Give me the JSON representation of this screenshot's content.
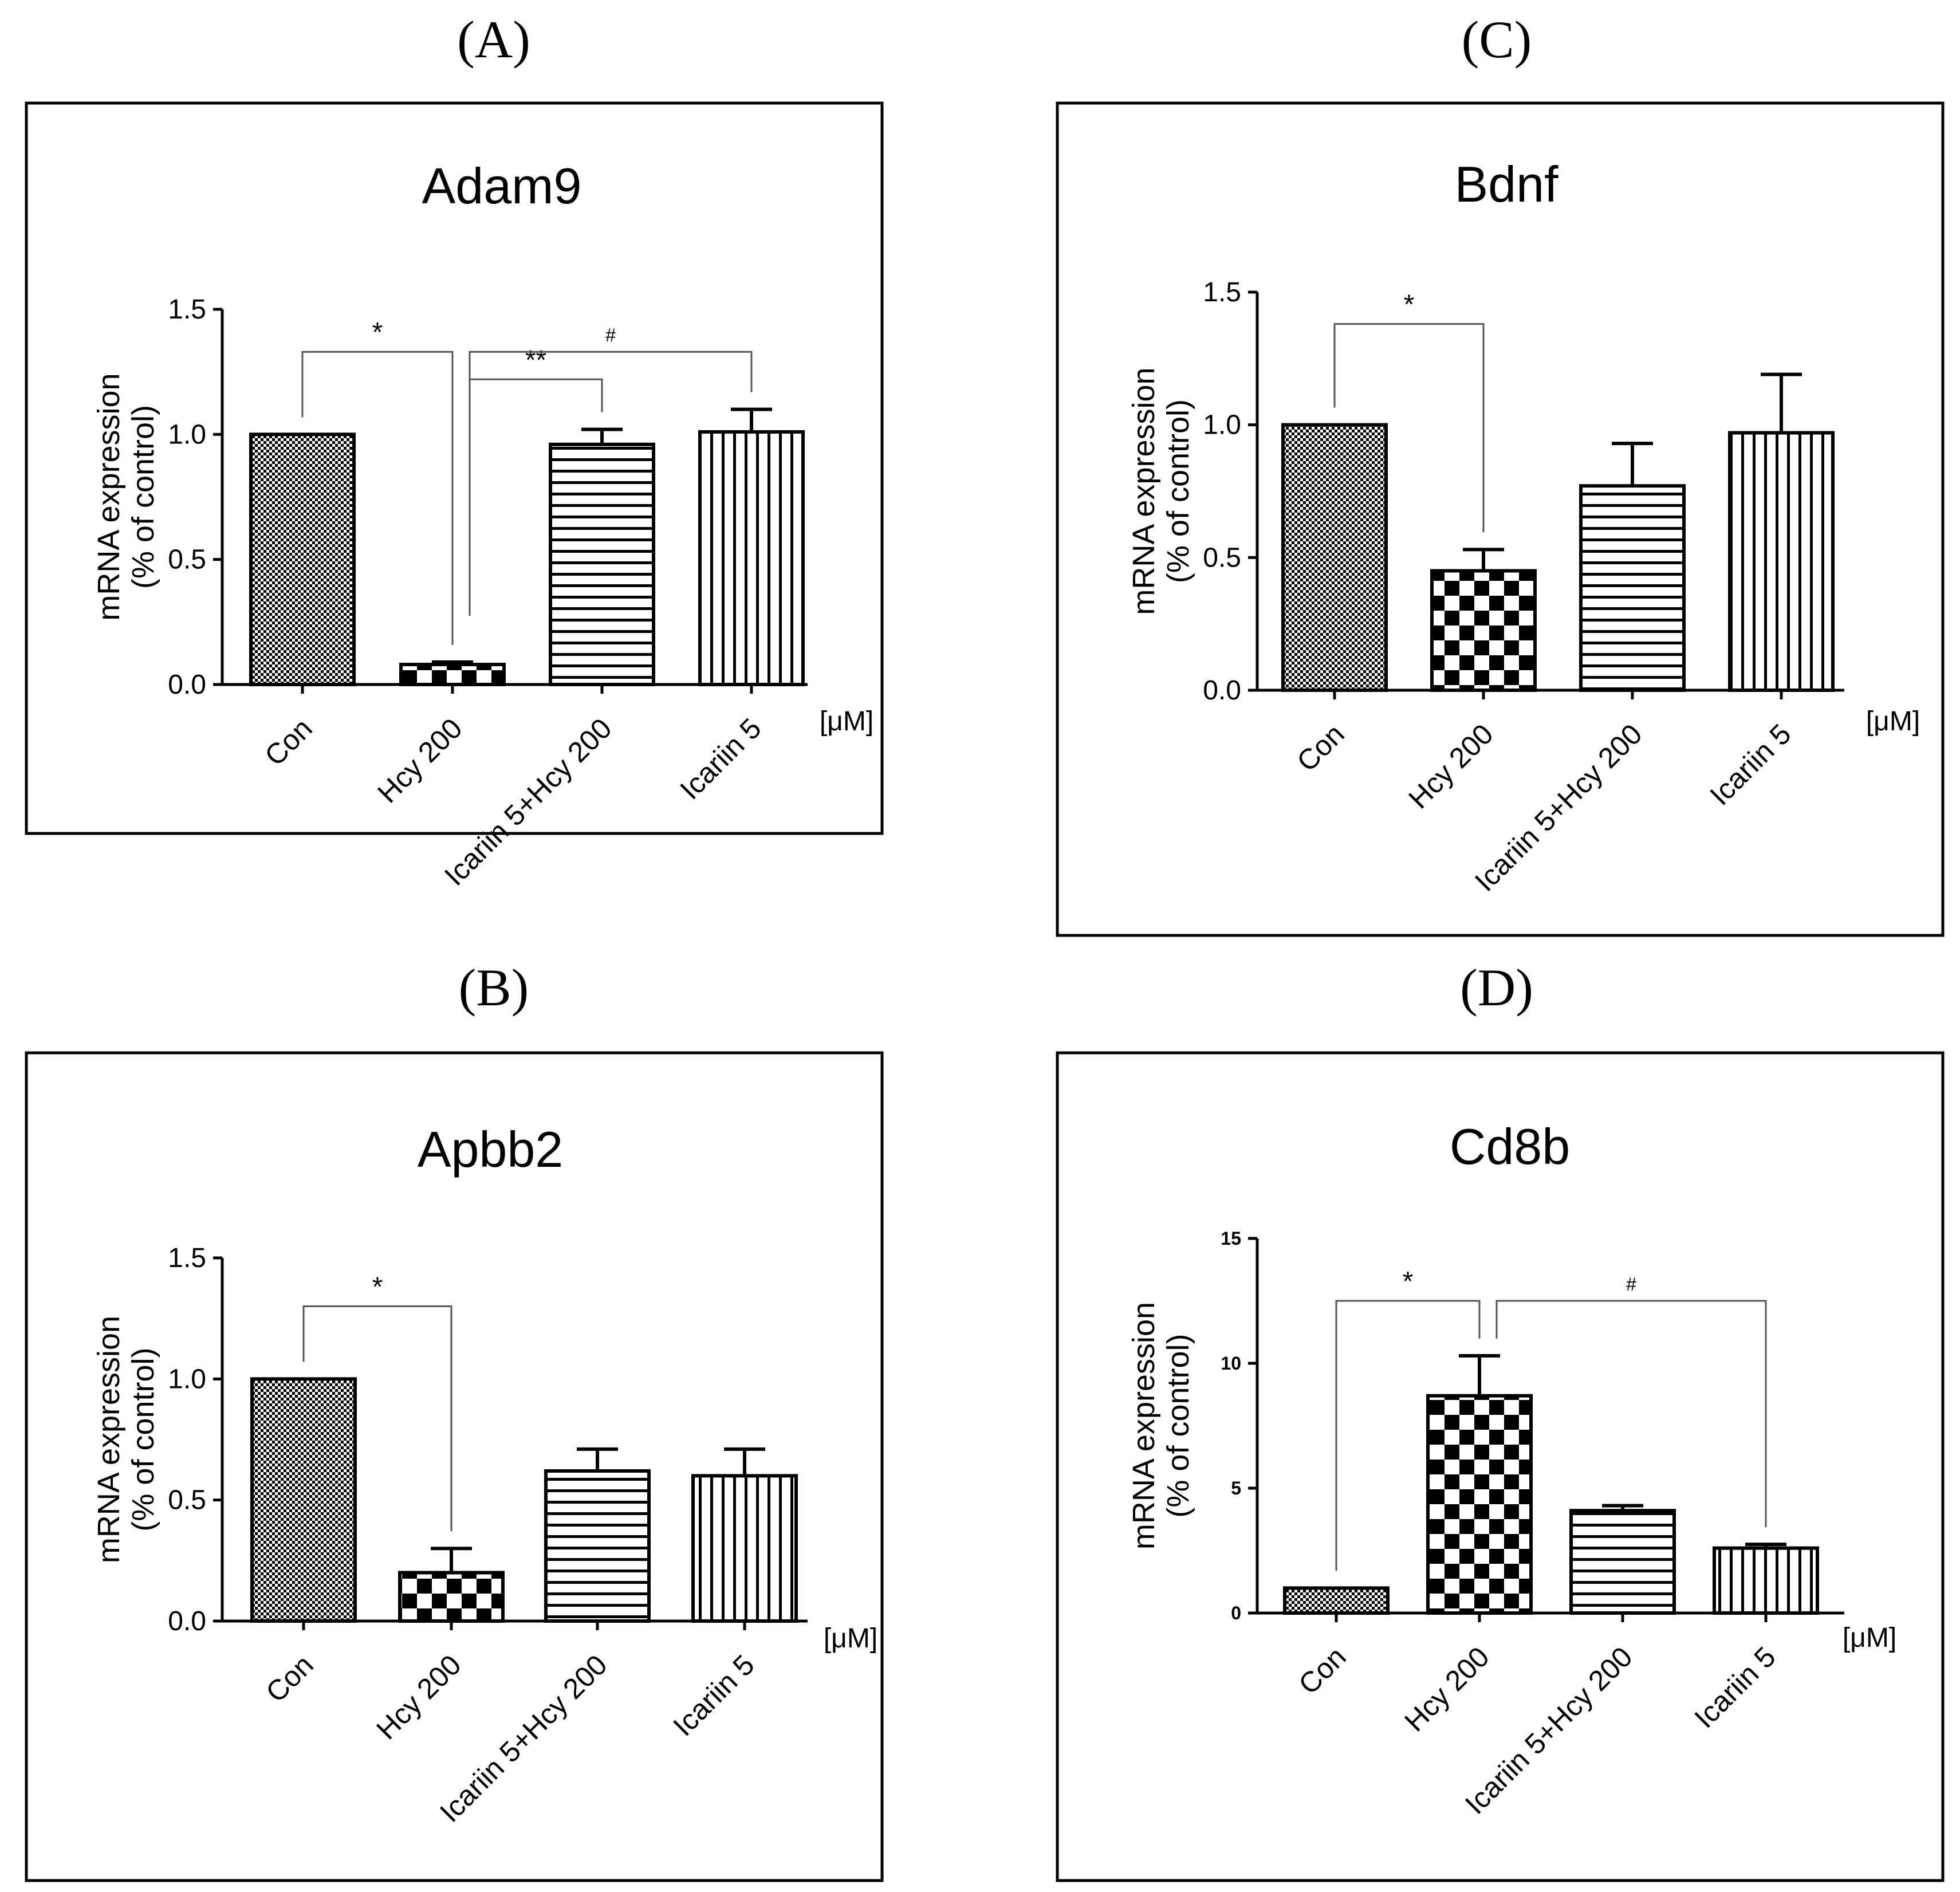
{
  "figure": {
    "unit_label": "[μM]",
    "categories": [
      "Con",
      "Hcy 200",
      "Icariin 5+Hcy 200",
      "Icariin 5"
    ],
    "bar_patterns": [
      "pat-crosshatch",
      "pat-checker",
      "pat-hlines",
      "pat-vlines"
    ]
  },
  "chart_data": [
    {
      "panel": "(A)",
      "type": "bar",
      "title": "Adam9",
      "ylabel_line1": "mRNA expression",
      "ylabel_line2": "(% of control)",
      "xlabel": "",
      "categories": [
        "Con",
        "Hcy 200",
        "Icariin 5+Hcy 200",
        "Icariin 5"
      ],
      "values": [
        1.0,
        0.08,
        0.96,
        1.01
      ],
      "errors": [
        0,
        0.01,
        0.06,
        0.09
      ],
      "ylim": [
        0,
        1.5
      ],
      "yticks": [
        "0.0",
        "0.5",
        "1.0",
        "1.5"
      ],
      "ytick_values": [
        0,
        0.5,
        1.0,
        1.5
      ],
      "significance": [
        {
          "from": 0,
          "to": 1,
          "label": "*",
          "level": 1.33
        },
        {
          "from": 1,
          "to": 2,
          "label": "**",
          "level": 1.22
        },
        {
          "from": 1,
          "to": 3,
          "label": "#",
          "level": 1.33
        }
      ]
    },
    {
      "panel": "(B)",
      "type": "bar",
      "title": "Apbb2",
      "ylabel_line1": "mRNA expression",
      "ylabel_line2": "(% of control)",
      "xlabel": "",
      "categories": [
        "Con",
        "Hcy 200",
        "Icariin 5+Hcy 200",
        "Icariin 5"
      ],
      "values": [
        1.0,
        0.2,
        0.62,
        0.6
      ],
      "errors": [
        0,
        0.1,
        0.09,
        0.11
      ],
      "ylim": [
        0,
        1.5
      ],
      "yticks": [
        "0.0",
        "0.5",
        "1.0",
        "1.5"
      ],
      "ytick_values": [
        0,
        0.5,
        1.0,
        1.5
      ],
      "significance": [
        {
          "from": 0,
          "to": 1,
          "label": "*",
          "level": 1.3
        }
      ]
    },
    {
      "panel": "(C)",
      "type": "bar",
      "title": "Bdnf",
      "ylabel_line1": "mRNA expression",
      "ylabel_line2": "(% of control)",
      "xlabel": "",
      "categories": [
        "Con",
        "Hcy 200",
        "Icariin 5+Hcy 200",
        "Icariin 5"
      ],
      "values": [
        1.0,
        0.45,
        0.77,
        0.97
      ],
      "errors": [
        0,
        0.08,
        0.16,
        0.22
      ],
      "ylim": [
        0,
        1.5
      ],
      "yticks": [
        "0.0",
        "0.5",
        "1.0",
        "1.5"
      ],
      "ytick_values": [
        0,
        0.5,
        1.0,
        1.5
      ],
      "significance": [
        {
          "from": 0,
          "to": 1,
          "label": "*",
          "level": 1.38
        }
      ]
    },
    {
      "panel": "(D)",
      "type": "bar",
      "title": "Cd8b",
      "ylabel_line1": "mRNA expression",
      "ylabel_line2": "(% of control)",
      "xlabel": "",
      "categories": [
        "Con",
        "Hcy 200",
        "Icariin 5+Hcy 200",
        "Icariin 5"
      ],
      "values": [
        1.0,
        8.7,
        4.1,
        2.6
      ],
      "errors": [
        0,
        1.6,
        0.2,
        0.15
      ],
      "ylim": [
        0,
        15
      ],
      "yticks": [
        "0",
        "5",
        "10",
        "15"
      ],
      "ytick_values": [
        0,
        5,
        10,
        15
      ],
      "significance": [
        {
          "from": 0,
          "to": 1,
          "label": "*",
          "level": 12.5
        },
        {
          "from": 1,
          "to": 3,
          "label": "#",
          "level": 12.5
        }
      ]
    }
  ]
}
